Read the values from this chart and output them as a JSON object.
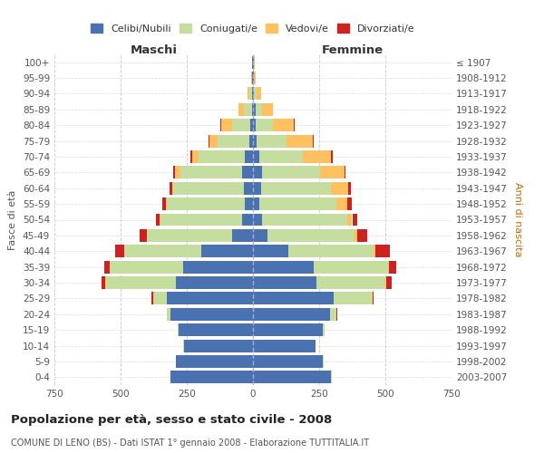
{
  "age_groups": [
    "0-4",
    "5-9",
    "10-14",
    "15-19",
    "20-24",
    "25-29",
    "30-34",
    "35-39",
    "40-44",
    "45-49",
    "50-54",
    "55-59",
    "60-64",
    "65-69",
    "70-74",
    "75-79",
    "80-84",
    "85-89",
    "90-94",
    "95-99",
    "100+"
  ],
  "birth_years": [
    "2003-2007",
    "1998-2002",
    "1993-1997",
    "1988-1992",
    "1983-1987",
    "1978-1982",
    "1973-1977",
    "1968-1972",
    "1963-1967",
    "1958-1962",
    "1953-1957",
    "1948-1952",
    "1943-1947",
    "1938-1942",
    "1933-1937",
    "1928-1932",
    "1923-1927",
    "1918-1922",
    "1913-1917",
    "1908-1912",
    "≤ 1907"
  ],
  "males": {
    "celibi": [
      310,
      290,
      260,
      280,
      310,
      325,
      290,
      265,
      195,
      80,
      40,
      30,
      35,
      40,
      30,
      15,
      10,
      5,
      5,
      2,
      2
    ],
    "coniugati": [
      2,
      2,
      2,
      5,
      15,
      50,
      265,
      275,
      290,
      320,
      310,
      295,
      265,
      235,
      175,
      120,
      70,
      30,
      10,
      3,
      2
    ],
    "vedovi": [
      0,
      0,
      0,
      0,
      0,
      2,
      2,
      2,
      2,
      2,
      2,
      3,
      5,
      20,
      25,
      30,
      40,
      20,
      5,
      2,
      0
    ],
    "divorziati": [
      0,
      0,
      0,
      0,
      2,
      5,
      15,
      20,
      35,
      25,
      15,
      15,
      10,
      5,
      5,
      3,
      2,
      0,
      0,
      0,
      0
    ]
  },
  "females": {
    "nubili": [
      295,
      265,
      235,
      265,
      290,
      305,
      240,
      230,
      135,
      55,
      35,
      25,
      30,
      35,
      25,
      15,
      10,
      10,
      5,
      2,
      2
    ],
    "coniugate": [
      2,
      2,
      2,
      5,
      25,
      145,
      260,
      280,
      320,
      330,
      320,
      290,
      265,
      220,
      165,
      110,
      65,
      25,
      10,
      3,
      2
    ],
    "vedove": [
      0,
      0,
      0,
      0,
      0,
      2,
      3,
      5,
      8,
      10,
      20,
      40,
      65,
      90,
      105,
      100,
      80,
      40,
      15,
      5,
      2
    ],
    "divorziate": [
      0,
      0,
      0,
      0,
      2,
      5,
      20,
      25,
      55,
      35,
      20,
      20,
      10,
      5,
      5,
      3,
      2,
      0,
      0,
      0,
      0
    ]
  },
  "colors": {
    "celibi": "#4a72b0",
    "coniugati": "#c5dea0",
    "vedovi": "#ffc060",
    "divorziati": "#cc2222"
  },
  "legend_labels": [
    "Celibi/Nubili",
    "Coniugati/e",
    "Vedovi/e",
    "Divorziati/e"
  ],
  "title": "Popolazione per età, sesso e stato civile - 2008",
  "subtitle": "COMUNE DI LENO (BS) - Dati ISTAT 1° gennaio 2008 - Elaborazione TUTTITALIA.IT",
  "xlabel_left": "Maschi",
  "xlabel_right": "Femmine",
  "ylabel_left": "Fasce di età",
  "ylabel_right": "Anni di nascita",
  "xlim": 750,
  "bg_color": "#ffffff",
  "grid_color": "#cccccc"
}
